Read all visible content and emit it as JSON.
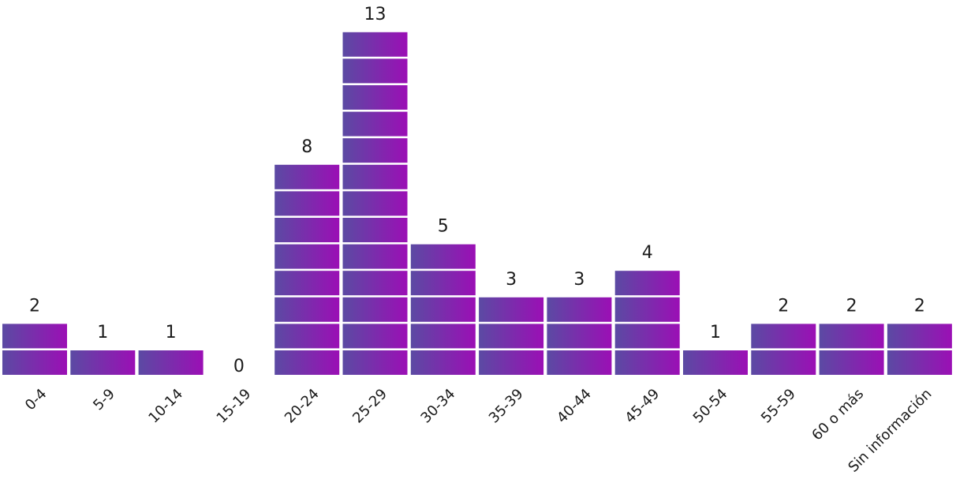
{
  "chart_data": {
    "type": "bar",
    "style": "stacked-unit-blocks",
    "categories": [
      "0-4",
      "5-9",
      "10-14",
      "15-19",
      "20-24",
      "25-29",
      "30-34",
      "35-39",
      "40-44",
      "45-49",
      "50-54",
      "55-59",
      "60 o más",
      "Sin información"
    ],
    "values": [
      2,
      1,
      1,
      0,
      8,
      13,
      5,
      3,
      3,
      4,
      1,
      2,
      2,
      2
    ],
    "data_labels": [
      "2",
      "1",
      "1",
      "0",
      "8",
      "13",
      "5",
      "3",
      "3",
      "4",
      "1",
      "2",
      "2",
      "2"
    ],
    "title": "",
    "xlabel": "",
    "ylabel": "",
    "ylim": [
      0,
      13
    ],
    "grid": false,
    "legend": "none",
    "colors": {
      "block_start": "#5b4aa3",
      "block_end": "#9b0fb5",
      "text": "#1a1a1a"
    }
  }
}
